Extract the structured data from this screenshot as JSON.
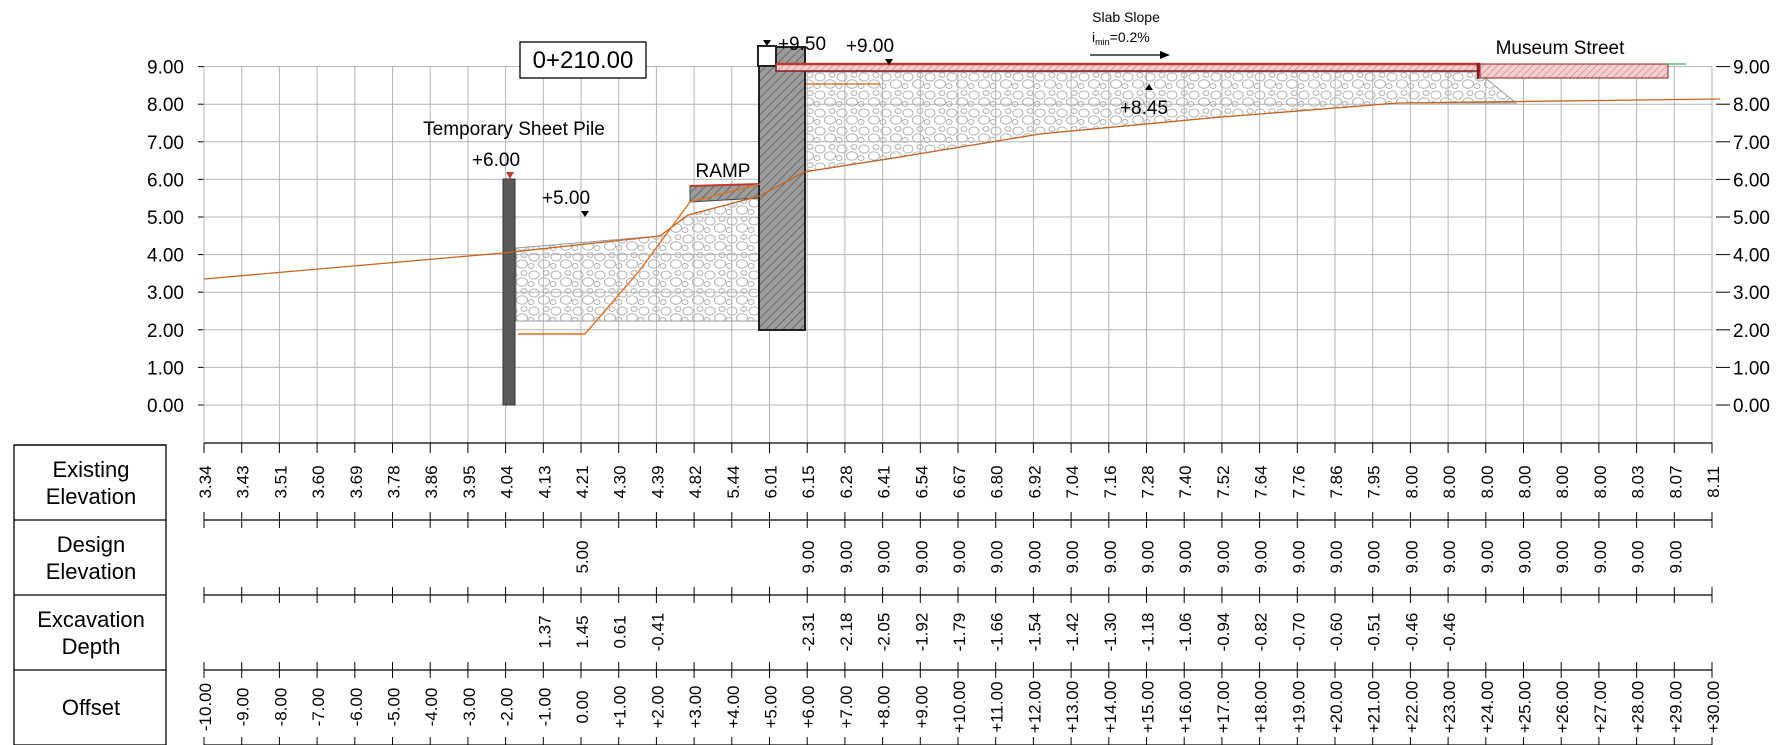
{
  "station": "0+210.00",
  "labels": {
    "sheet_pile": "Temporary Sheet Pile",
    "sheet_pile_top": "+6.00",
    "ramp": "RAMP",
    "level_5": "+5.00",
    "wall_top": "+9.50",
    "slab_top": "+9.00",
    "slab_bottom": "+8.45",
    "slab_slope": "Slab Slope",
    "slope_i": "i",
    "slope_sub": "min",
    "slope_val": "=0.2%",
    "street": "Museum Street"
  },
  "y_axis": {
    "ticks": [
      "9.00",
      "8.00",
      "7.00",
      "6.00",
      "5.00",
      "4.00",
      "3.00",
      "2.00",
      "1.00",
      "0.00"
    ]
  },
  "bands": [
    {
      "key": "existing",
      "label": "Existing\nElevation"
    },
    {
      "key": "design",
      "label": "Design\nElevation"
    },
    {
      "key": "excavation",
      "label": "Excavation\nDepth"
    },
    {
      "key": "offset",
      "label": "Offset"
    }
  ],
  "columns": [
    {
      "offset": "-10.00",
      "existing": "3.34",
      "design": "",
      "excavation": ""
    },
    {
      "offset": "-9.00",
      "existing": "3.43",
      "design": "",
      "excavation": ""
    },
    {
      "offset": "-8.00",
      "existing": "3.51",
      "design": "",
      "excavation": ""
    },
    {
      "offset": "-7.00",
      "existing": "3.60",
      "design": "",
      "excavation": ""
    },
    {
      "offset": "-6.00",
      "existing": "3.69",
      "design": "",
      "excavation": ""
    },
    {
      "offset": "-5.00",
      "existing": "3.78",
      "design": "",
      "excavation": ""
    },
    {
      "offset": "-4.00",
      "existing": "3.86",
      "design": "",
      "excavation": ""
    },
    {
      "offset": "-3.00",
      "existing": "3.95",
      "design": "",
      "excavation": ""
    },
    {
      "offset": "-2.00",
      "existing": "4.04",
      "design": "",
      "excavation": ""
    },
    {
      "offset": "-1.00",
      "existing": "4.13",
      "design": "",
      "excavation": "1.37"
    },
    {
      "offset": "0.00",
      "existing": "4.21",
      "design": "5.00",
      "excavation": "1.45"
    },
    {
      "offset": "+1.00",
      "existing": "4.30",
      "design": "",
      "excavation": "0.61"
    },
    {
      "offset": "+2.00",
      "existing": "4.39",
      "design": "",
      "excavation": "-0.41"
    },
    {
      "offset": "+3.00",
      "existing": "4.82",
      "design": "",
      "excavation": ""
    },
    {
      "offset": "+4.00",
      "existing": "5.44",
      "design": "",
      "excavation": ""
    },
    {
      "offset": "+5.00",
      "existing": "6.01",
      "design": "",
      "excavation": ""
    },
    {
      "offset": "+6.00",
      "existing": "6.15",
      "design": "9.00",
      "excavation": "-2.31"
    },
    {
      "offset": "+7.00",
      "existing": "6.28",
      "design": "9.00",
      "excavation": "-2.18"
    },
    {
      "offset": "+8.00",
      "existing": "6.41",
      "design": "9.00",
      "excavation": "-2.05"
    },
    {
      "offset": "+9.00",
      "existing": "6.54",
      "design": "9.00",
      "excavation": "-1.92"
    },
    {
      "offset": "+10.00",
      "existing": "6.67",
      "design": "9.00",
      "excavation": "-1.79"
    },
    {
      "offset": "+11.00",
      "existing": "6.80",
      "design": "9.00",
      "excavation": "-1.66"
    },
    {
      "offset": "+12.00",
      "existing": "6.92",
      "design": "9.00",
      "excavation": "-1.54"
    },
    {
      "offset": "+13.00",
      "existing": "7.04",
      "design": "9.00",
      "excavation": "-1.42"
    },
    {
      "offset": "+14.00",
      "existing": "7.16",
      "design": "9.00",
      "excavation": "-1.30"
    },
    {
      "offset": "+15.00",
      "existing": "7.28",
      "design": "9.00",
      "excavation": "-1.18"
    },
    {
      "offset": "+16.00",
      "existing": "7.40",
      "design": "9.00",
      "excavation": "-1.06"
    },
    {
      "offset": "+17.00",
      "existing": "7.52",
      "design": "9.00",
      "excavation": "-0.94"
    },
    {
      "offset": "+18.00",
      "existing": "7.64",
      "design": "9.00",
      "excavation": "-0.82"
    },
    {
      "offset": "+19.00",
      "existing": "7.76",
      "design": "9.00",
      "excavation": "-0.70"
    },
    {
      "offset": "+20.00",
      "existing": "7.86",
      "design": "9.00",
      "excavation": "-0.60"
    },
    {
      "offset": "+21.00",
      "existing": "7.95",
      "design": "9.00",
      "excavation": "-0.51"
    },
    {
      "offset": "+22.00",
      "existing": "8.00",
      "design": "9.00",
      "excavation": "-0.46"
    },
    {
      "offset": "+23.00",
      "existing": "8.00",
      "design": "9.00",
      "excavation": "-0.46"
    },
    {
      "offset": "+24.00",
      "existing": "8.00",
      "design": "9.00",
      "excavation": ""
    },
    {
      "offset": "+25.00",
      "existing": "8.00",
      "design": "9.00",
      "excavation": ""
    },
    {
      "offset": "+26.00",
      "existing": "8.00",
      "design": "9.00",
      "excavation": ""
    },
    {
      "offset": "+27.00",
      "existing": "8.00",
      "design": "9.00",
      "excavation": ""
    },
    {
      "offset": "+28.00",
      "existing": "8.03",
      "design": "9.00",
      "excavation": ""
    },
    {
      "offset": "+29.00",
      "existing": "8.07",
      "design": "9.00",
      "excavation": ""
    },
    {
      "offset": "+30.00",
      "existing": "8.11",
      "design": "",
      "excavation": ""
    }
  ],
  "colors": {
    "grid": "#b4b4b4",
    "ground_line": "#c8641e",
    "pile": "#555555",
    "wall": "#9c9c9c",
    "slab": "#c0392b",
    "street": "#e8a0a0",
    "fill": "#c8c8c8"
  }
}
